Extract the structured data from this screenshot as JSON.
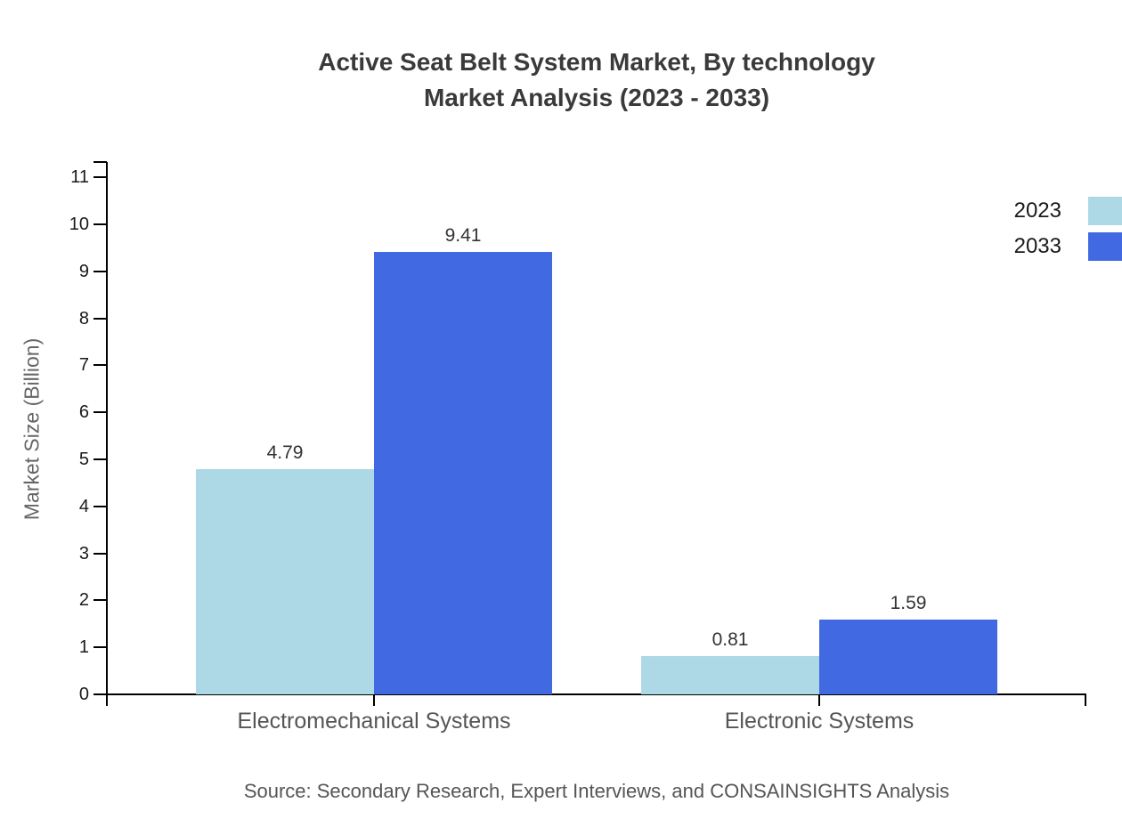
{
  "title": {
    "line1": "Active Seat Belt System Market, By technology",
    "line2": "Market Analysis (2023 - 2033)"
  },
  "source": "Source: Secondary Research, Expert Interviews, and CONSAINSIGHTS Analysis",
  "legend": {
    "position": "top-right",
    "items": [
      {
        "label": "2023",
        "color": "#ADD8E6"
      },
      {
        "label": "2033",
        "color": "#4169E1"
      }
    ]
  },
  "colors": {
    "series_2023": "#ADD8E6",
    "series_2033": "#4169E1",
    "axis": "#000000",
    "title_text": "#3a3a3a",
    "tick_text": "#1a1a1a",
    "value_text": "#333333",
    "category_text": "#555555",
    "muted_text": "#666666",
    "background": "#ffffff"
  },
  "chart_data": {
    "type": "bar",
    "title": "Active Seat Belt System Market, By technology Market Analysis (2023 - 2033)",
    "categories": [
      "Electromechanical Systems",
      "Electronic Systems"
    ],
    "series": [
      {
        "name": "2023",
        "color": "#ADD8E6",
        "values": [
          4.79,
          0.81
        ]
      },
      {
        "name": "2033",
        "color": "#4169E1",
        "values": [
          9.41,
          1.59
        ]
      }
    ],
    "xlabel": "",
    "ylabel": "Market Size (Billion)",
    "ylim": [
      0,
      11
    ],
    "yticks": [
      0,
      1,
      2,
      3,
      4,
      5,
      6,
      7,
      8,
      9,
      10,
      11
    ],
    "grid": false,
    "value_labels": true,
    "legend_position": "top-right"
  }
}
